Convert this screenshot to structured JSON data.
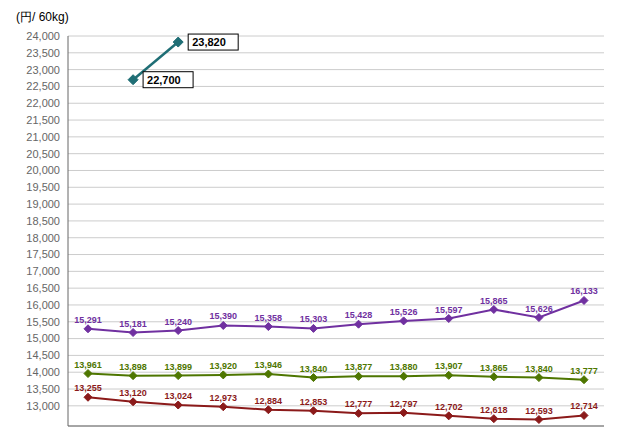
{
  "chart_data": {
    "type": "line",
    "ylabel": "(円/ 60kg)",
    "categories": [
      null,
      null,
      null,
      null,
      null,
      null,
      null,
      null,
      null,
      null,
      null,
      null
    ],
    "tick_labels": "y",
    "grid": true,
    "data_labels": true,
    "ylim": [
      12400,
      24000
    ],
    "yticks": [
      {
        "value": 13000,
        "label": "13,000"
      },
      {
        "value": 13500,
        "label": "13,500"
      },
      {
        "value": 14000,
        "label": "14,000"
      },
      {
        "value": 14500,
        "label": "14,500"
      },
      {
        "value": 15000,
        "label": "15,000"
      },
      {
        "value": 15500,
        "label": "15,500"
      },
      {
        "value": 16000,
        "label": "16,000"
      },
      {
        "value": 16500,
        "label": "16,500"
      },
      {
        "value": 17000,
        "label": "17,000"
      },
      {
        "value": 17500,
        "label": "17,500"
      },
      {
        "value": 18000,
        "label": "18,000"
      },
      {
        "value": 18500,
        "label": "18,500"
      },
      {
        "value": 19000,
        "label": "19,000"
      },
      {
        "value": 19500,
        "label": "19,500"
      },
      {
        "value": 20000,
        "label": "20,000"
      },
      {
        "value": 20500,
        "label": "20,500"
      },
      {
        "value": 21000,
        "label": "21,000"
      },
      {
        "value": 21500,
        "label": "21,500"
      },
      {
        "value": 22000,
        "label": "22,000"
      },
      {
        "value": 22500,
        "label": "22,500"
      },
      {
        "value": 23000,
        "label": "23,000"
      },
      {
        "value": 23500,
        "label": "23,500"
      },
      {
        "value": 24000,
        "label": "24,000"
      }
    ],
    "series": [
      {
        "color": "#7030A0",
        "marker": "diamond",
        "values": [
          15291,
          15181,
          15240,
          15390,
          15358,
          15303,
          15428,
          15526,
          15597,
          15865,
          15626,
          16133
        ],
        "value_labels": [
          "15,291",
          "15,181",
          "15,240",
          "15,390",
          "15,358",
          "15,303",
          "15,428",
          "15,526",
          "15,597",
          "15,865",
          "15,626",
          "16,133"
        ]
      },
      {
        "color": "#4E7600",
        "marker": "diamond",
        "values": [
          13961,
          13898,
          13899,
          13920,
          13946,
          13840,
          13877,
          13880,
          13907,
          13865,
          13840,
          13777
        ],
        "value_labels": [
          "13,961",
          "13,898",
          "13,899",
          "13,920",
          "13,946",
          "13,840",
          "13,877",
          "13,880",
          "13,907",
          "13,865",
          "13,840",
          "13,777"
        ]
      },
      {
        "color": "#8B1A1A",
        "marker": "diamond",
        "values": [
          13255,
          13120,
          13024,
          12973,
          12884,
          12853,
          12777,
          12797,
          12702,
          12618,
          12593,
          12714
        ],
        "value_labels": [
          "13,255",
          "13,120",
          "13,024",
          "12,973",
          "12,884",
          "12,853",
          "12,777",
          "12,797",
          "12,702",
          "12,618",
          "12,593",
          "12,714"
        ]
      },
      {
        "color": "#1F6E75",
        "marker": "diamond",
        "values": [
          null,
          22700,
          23820,
          null,
          null,
          null,
          null,
          null,
          null,
          null,
          null,
          null
        ],
        "value_labels": [
          null,
          "22,700",
          "23,820",
          null,
          null,
          null,
          null,
          null,
          null,
          null,
          null,
          null
        ]
      }
    ]
  }
}
